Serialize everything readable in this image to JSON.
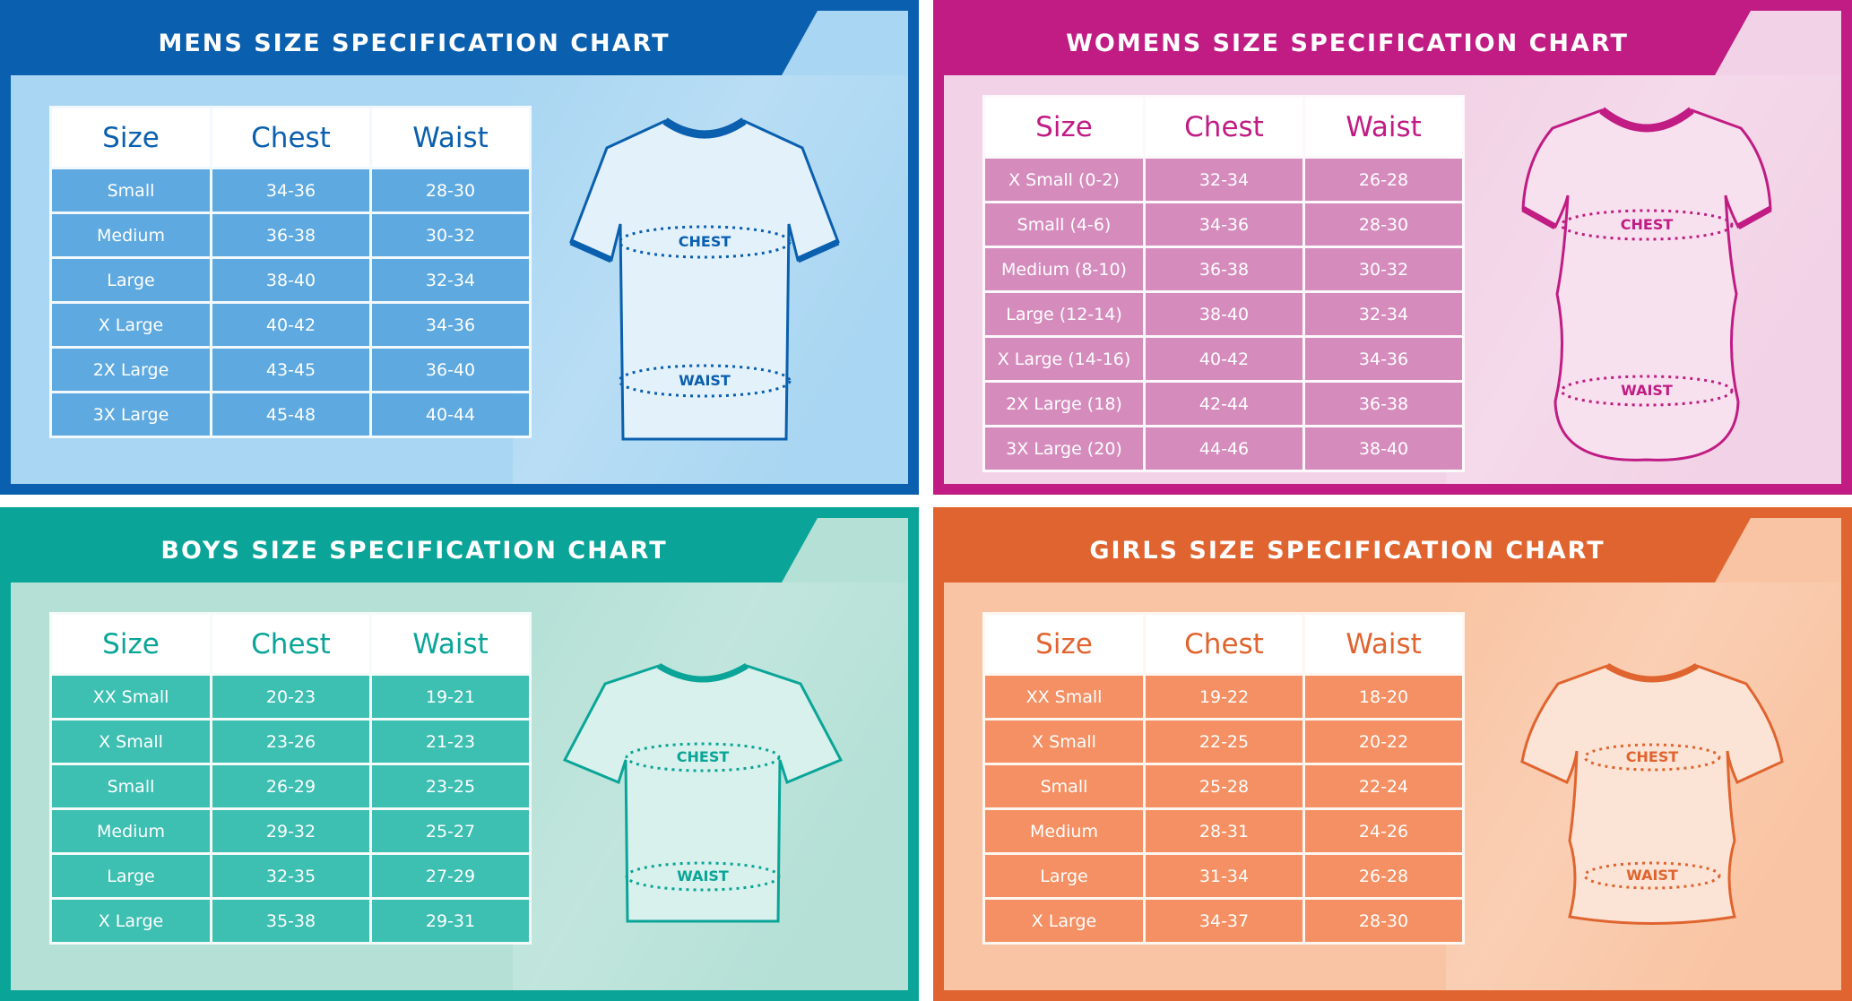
{
  "columns": [
    "Size",
    "Chest",
    "Waist"
  ],
  "labels": {
    "chest": "CHEST",
    "waist": "WAIST"
  },
  "charts": {
    "mens": {
      "title": "MENS SIZE SPECIFICATION CHART",
      "colors": {
        "frame": "#0a5fae",
        "banner": "#0a5fae",
        "bg": "#a9d6f2",
        "header_text": "#0a5fae",
        "cell": "#5ea9df",
        "shirt_fill": "#e3f1fb",
        "shirt_trim": "#0a5fae",
        "measure": "#0a5fae"
      },
      "rows": [
        [
          "Small",
          "34-36",
          "28-30"
        ],
        [
          "Medium",
          "36-38",
          "30-32"
        ],
        [
          "Large",
          "38-40",
          "32-34"
        ],
        [
          "X Large",
          "40-42",
          "34-36"
        ],
        [
          "2X Large",
          "43-45",
          "36-40"
        ],
        [
          "3X Large",
          "45-48",
          "40-44"
        ]
      ]
    },
    "womens": {
      "title": "WOMENS SIZE SPECIFICATION CHART",
      "colors": {
        "frame": "#c01c83",
        "banner": "#c01c83",
        "bg": "#f2d2e6",
        "header_text": "#c01c83",
        "cell": "#d58cbd",
        "shirt_fill": "#f7e1ef",
        "shirt_trim": "#c01c83",
        "measure": "#c01c83"
      },
      "rows": [
        [
          "X Small (0-2)",
          "32-34",
          "26-28"
        ],
        [
          "Small (4-6)",
          "34-36",
          "28-30"
        ],
        [
          "Medium (8-10)",
          "36-38",
          "30-32"
        ],
        [
          "Large (12-14)",
          "38-40",
          "32-34"
        ],
        [
          "X Large (14-16)",
          "40-42",
          "34-36"
        ],
        [
          "2X Large (18)",
          "42-44",
          "36-38"
        ],
        [
          "3X Large (20)",
          "44-46",
          "38-40"
        ]
      ]
    },
    "boys": {
      "title": "BOYS SIZE SPECIFICATION CHART",
      "colors": {
        "frame": "#0aa598",
        "banner": "#0aa598",
        "bg": "#b4e0d6",
        "header_text": "#0aa598",
        "cell": "#3dbfb1",
        "shirt_fill": "#d9f1ec",
        "shirt_trim": "#0aa598",
        "measure": "#0aa598"
      },
      "rows": [
        [
          "XX Small",
          "20-23",
          "19-21"
        ],
        [
          "X Small",
          "23-26",
          "21-23"
        ],
        [
          "Small",
          "26-29",
          "23-25"
        ],
        [
          "Medium",
          "29-32",
          "25-27"
        ],
        [
          "Large",
          "32-35",
          "27-29"
        ],
        [
          "X Large",
          "35-38",
          "29-31"
        ]
      ]
    },
    "girls": {
      "title": "GIRLS SIZE SPECIFICATION CHART",
      "colors": {
        "frame": "#e0642f",
        "banner": "#e0642f",
        "bg": "#f9c4a3",
        "header_text": "#e0642f",
        "cell": "#f49063",
        "shirt_fill": "#fbe4d6",
        "shirt_trim": "#e0642f",
        "measure": "#e0642f"
      },
      "rows": [
        [
          "XX Small",
          "19-22",
          "18-20"
        ],
        [
          "X Small",
          "22-25",
          "20-22"
        ],
        [
          "Small",
          "25-28",
          "22-24"
        ],
        [
          "Medium",
          "28-31",
          "24-26"
        ],
        [
          "Large",
          "31-34",
          "26-28"
        ],
        [
          "X Large",
          "34-37",
          "28-30"
        ]
      ]
    }
  }
}
